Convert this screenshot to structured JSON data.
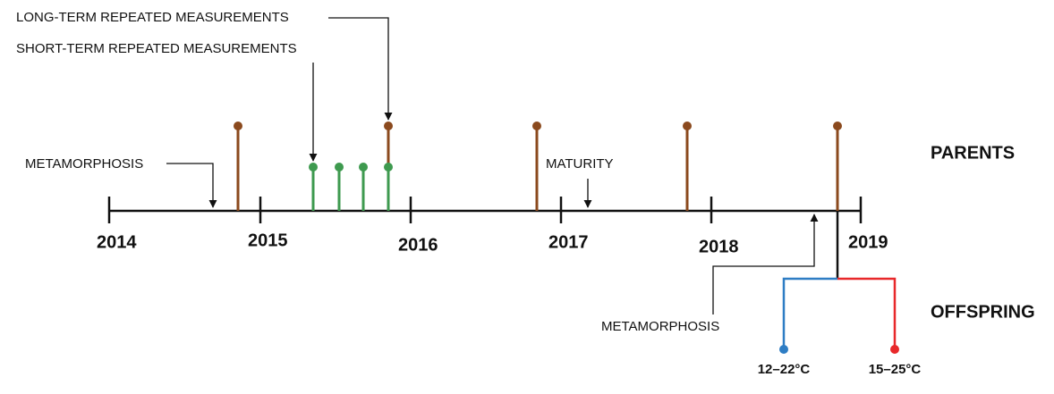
{
  "labels": {
    "long_term": "LONG-TERM REPEATED MEASUREMENTS",
    "short_term": "SHORT-TERM REPEATED MEASUREMENTS",
    "metamorphosis_parents": "METAMORPHOSIS",
    "maturity": "MATURITY",
    "metamorphosis_offspring": "METAMORPHOSIS"
  },
  "years": [
    "2014",
    "2015",
    "2016",
    "2017",
    "2018",
    "2019"
  ],
  "groups": {
    "parents": "PARENTS",
    "offspring": "OFFSPRING"
  },
  "temperatures": [
    "12–22°C",
    "15–25°C"
  ]
}
